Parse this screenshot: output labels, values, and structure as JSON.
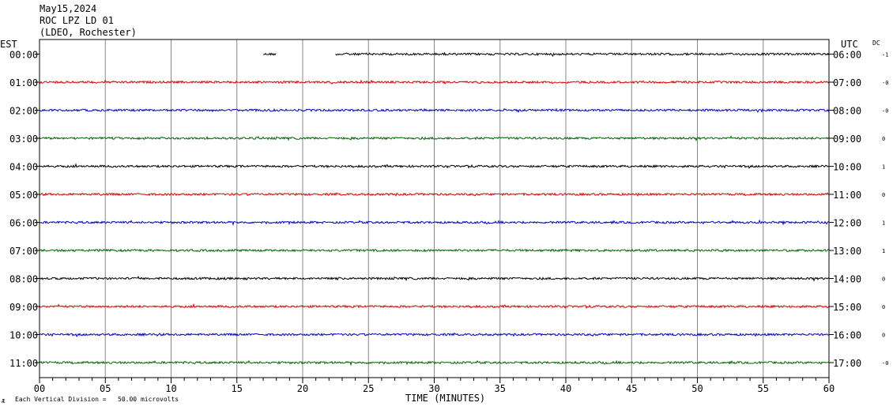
{
  "header": {
    "date": "May15,2024",
    "station": "ROC LPZ LD 01",
    "location": "(LDEO, Rochester)"
  },
  "chart_data": {
    "type": "line",
    "title": "May15,2024 ROC LPZ LD 01 (LDEO, Rochester)",
    "xlabel": "TIME (MINUTES)",
    "left_axis_label": "EST",
    "right_axis_label": "UTC",
    "dc_label": "DC",
    "xlim": [
      0,
      60
    ],
    "x_ticks": [
      "00",
      "05",
      "10",
      "15",
      "20",
      "25",
      "30",
      "35",
      "40",
      "45",
      "50",
      "55",
      "60"
    ],
    "footnote": "Each Vertical Division =   50.00 microvolts",
    "corner_mark": "Æ",
    "grid": true,
    "trace_colors": [
      "#000000",
      "#dd0000",
      "#0000cc",
      "#006600"
    ],
    "rows": [
      {
        "est": "00:00",
        "utc": "06:00",
        "dc": "-1",
        "color": "#000000",
        "segments": [
          [
            17.0,
            18.0
          ],
          [
            22.5,
            60
          ]
        ]
      },
      {
        "est": "01:00",
        "utc": "07:00",
        "dc": "-0",
        "color": "#dd0000",
        "segments": [
          [
            0,
            60
          ]
        ]
      },
      {
        "est": "02:00",
        "utc": "08:00",
        "dc": "-0",
        "color": "#0000cc",
        "segments": [
          [
            0,
            60
          ]
        ]
      },
      {
        "est": "03:00",
        "utc": "09:00",
        "dc": "0",
        "color": "#006600",
        "segments": [
          [
            0,
            60
          ]
        ]
      },
      {
        "est": "04:00",
        "utc": "10:00",
        "dc": "1",
        "color": "#000000",
        "segments": [
          [
            0,
            60
          ]
        ]
      },
      {
        "est": "05:00",
        "utc": "11:00",
        "dc": "0",
        "color": "#dd0000",
        "segments": [
          [
            0,
            60
          ]
        ]
      },
      {
        "est": "06:00",
        "utc": "12:00",
        "dc": "1",
        "color": "#0000cc",
        "segments": [
          [
            0,
            60
          ]
        ]
      },
      {
        "est": "07:00",
        "utc": "13:00",
        "dc": "1",
        "color": "#006600",
        "segments": [
          [
            0,
            60
          ]
        ]
      },
      {
        "est": "08:00",
        "utc": "14:00",
        "dc": "0",
        "color": "#000000",
        "segments": [
          [
            0,
            60
          ]
        ]
      },
      {
        "est": "09:00",
        "utc": "15:00",
        "dc": "0",
        "color": "#dd0000",
        "segments": [
          [
            0,
            60
          ]
        ]
      },
      {
        "est": "10:00",
        "utc": "16:00",
        "dc": "0",
        "color": "#0000cc",
        "segments": [
          [
            0,
            60
          ]
        ]
      },
      {
        "est": "11:00",
        "utc": "17:00",
        "dc": "-0",
        "color": "#006600",
        "segments": [
          [
            0,
            60
          ]
        ]
      }
    ]
  }
}
